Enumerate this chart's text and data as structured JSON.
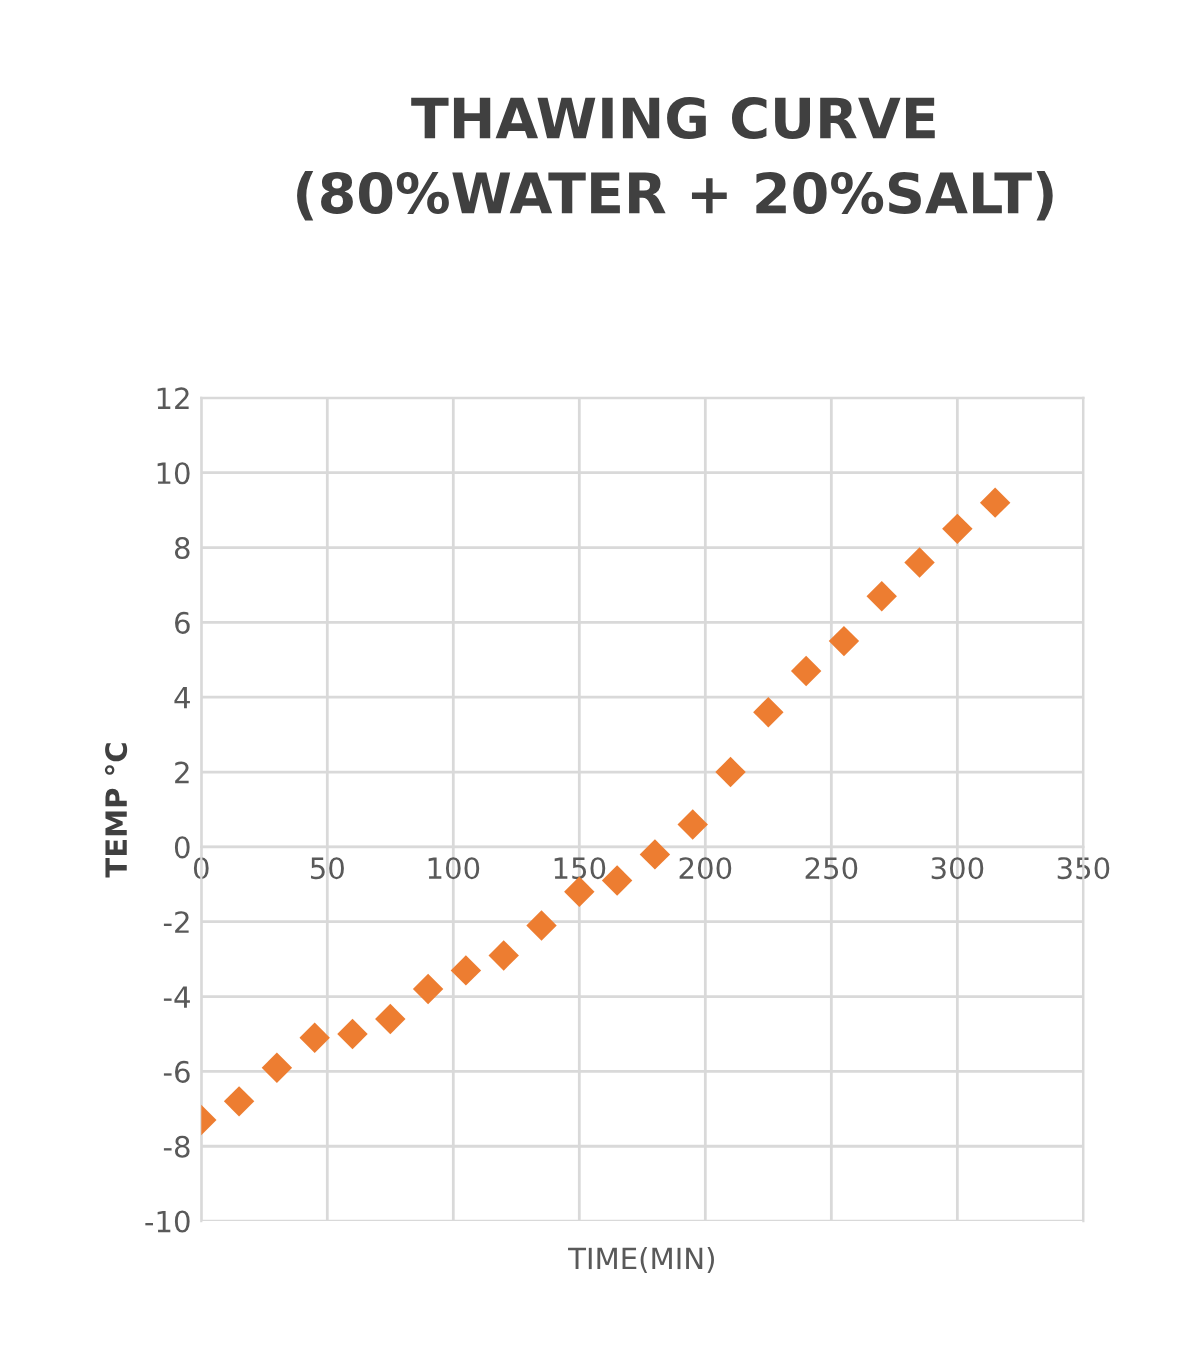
{
  "chart_data": {
    "type": "scatter",
    "title": "THAWING CURVE\n(80%WATER + 20%SALT)",
    "xlabel": "TIME(MIN)",
    "ylabel": "TEMP °C",
    "x": [
      0,
      15,
      30,
      45,
      60,
      75,
      90,
      105,
      120,
      135,
      150,
      165,
      180,
      195,
      210,
      225,
      240,
      255,
      270,
      285,
      300,
      315
    ],
    "series": [
      {
        "color": "#ed7d31",
        "values": [
          -7.3,
          -6.8,
          -5.9,
          -5.1,
          -5.0,
          -4.6,
          -3.8,
          -3.3,
          -2.9,
          -2.1,
          -1.2,
          -0.9,
          -0.2,
          0.6,
          2.0,
          3.6,
          4.7,
          5.5,
          6.7,
          7.6,
          8.5,
          9.2
        ]
      }
    ],
    "xlim": [
      0,
      350
    ],
    "xticks": [
      0,
      50,
      100,
      150,
      200,
      250,
      300,
      350
    ],
    "ylim": [
      -10,
      12
    ],
    "yticks": [
      -10,
      -8,
      -6,
      -4,
      -2,
      0,
      2,
      4,
      6,
      8,
      10,
      12
    ],
    "grid": true,
    "marker": "diamond"
  }
}
